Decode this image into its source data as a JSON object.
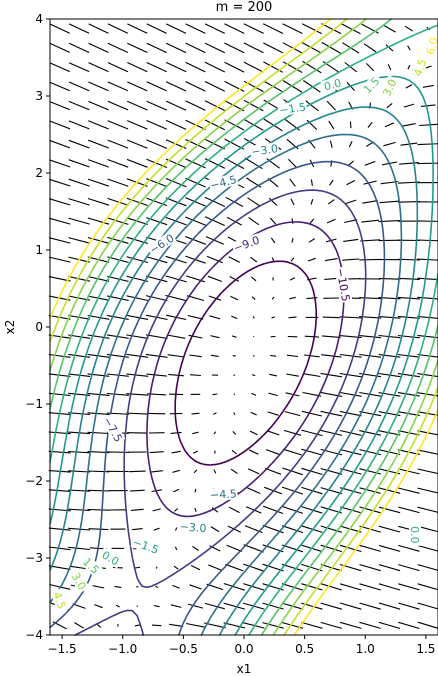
{
  "chart_data": {
    "type": "contour",
    "title": "m = 200",
    "xlabel": "x1",
    "ylabel": "x2",
    "xlim": [
      -1.6,
      1.6
    ],
    "ylim": [
      -4,
      4
    ],
    "x_ticks": [
      -1.5,
      -1.0,
      -0.5,
      0.0,
      0.5,
      1.0,
      1.5
    ],
    "x_tick_labels": [
      "−1.5",
      "−1.0",
      "−0.5",
      "0.0",
      "0.5",
      "1.0",
      "1.5"
    ],
    "y_ticks": [
      -4,
      -3,
      -2,
      -1,
      0,
      1,
      2,
      3,
      4
    ],
    "y_tick_labels": [
      "−4",
      "−3",
      "−2",
      "−1",
      "0",
      "1",
      "2",
      "3",
      "4"
    ],
    "colormap": "viridis",
    "contour_levels": [
      -10.5,
      -9.0,
      -7.5,
      -6.0,
      -4.5,
      -3.0,
      -1.5,
      0.0,
      1.5,
      3.0,
      4.5,
      6.0
    ],
    "contour_labels": [
      {
        "text": "−10.5",
        "x": 0.82,
        "y": 0.55,
        "rotation": 80
      },
      {
        "text": "−9.0",
        "x": 0.02,
        "y": 1.08,
        "rotation": -20
      },
      {
        "text": "−7.5",
        "x": -1.08,
        "y": -1.33,
        "rotation": 60
      },
      {
        "text": "−6.0",
        "x": -0.68,
        "y": 1.08,
        "rotation": -33
      },
      {
        "text": "−4.5",
        "x": -0.17,
        "y": 1.88,
        "rotation": -14
      },
      {
        "text": "−4.5",
        "x": -0.17,
        "y": -2.17,
        "rotation": -3
      },
      {
        "text": "−3.0",
        "x": 0.17,
        "y": 2.3,
        "rotation": -8
      },
      {
        "text": "−3.0",
        "x": -0.42,
        "y": -2.6,
        "rotation": 5
      },
      {
        "text": "−1.5",
        "x": 0.4,
        "y": 2.84,
        "rotation": -8
      },
      {
        "text": "−1.5",
        "x": -0.81,
        "y": -2.84,
        "rotation": 20
      },
      {
        "text": "0.0",
        "x": 0.73,
        "y": 3.15,
        "rotation": -15
      },
      {
        "text": "0.0",
        "x": -1.1,
        "y": -3.0,
        "rotation": 30
      },
      {
        "text": "1.5",
        "x": 1.05,
        "y": 3.14,
        "rotation": -45
      },
      {
        "text": "1.5",
        "x": -1.26,
        "y": -3.1,
        "rotation": 45
      },
      {
        "text": "3.0",
        "x": 1.2,
        "y": 3.11,
        "rotation": -65
      },
      {
        "text": "3.0",
        "x": -1.36,
        "y": -3.3,
        "rotation": 60
      },
      {
        "text": "4.5",
        "x": 1.45,
        "y": 3.37,
        "rotation": -70
      },
      {
        "text": "4.5",
        "x": -1.52,
        "y": -3.55,
        "rotation": 70
      },
      {
        "text": "6.0",
        "x": 1.55,
        "y": 3.65,
        "rotation": -75
      },
      {
        "text": "0.0",
        "x": 1.41,
        "y": -2.7,
        "rotation": 90
      }
    ],
    "quiver": "gradient field arrows on a regular grid across the domain",
    "grid": false,
    "legend": "none"
  }
}
